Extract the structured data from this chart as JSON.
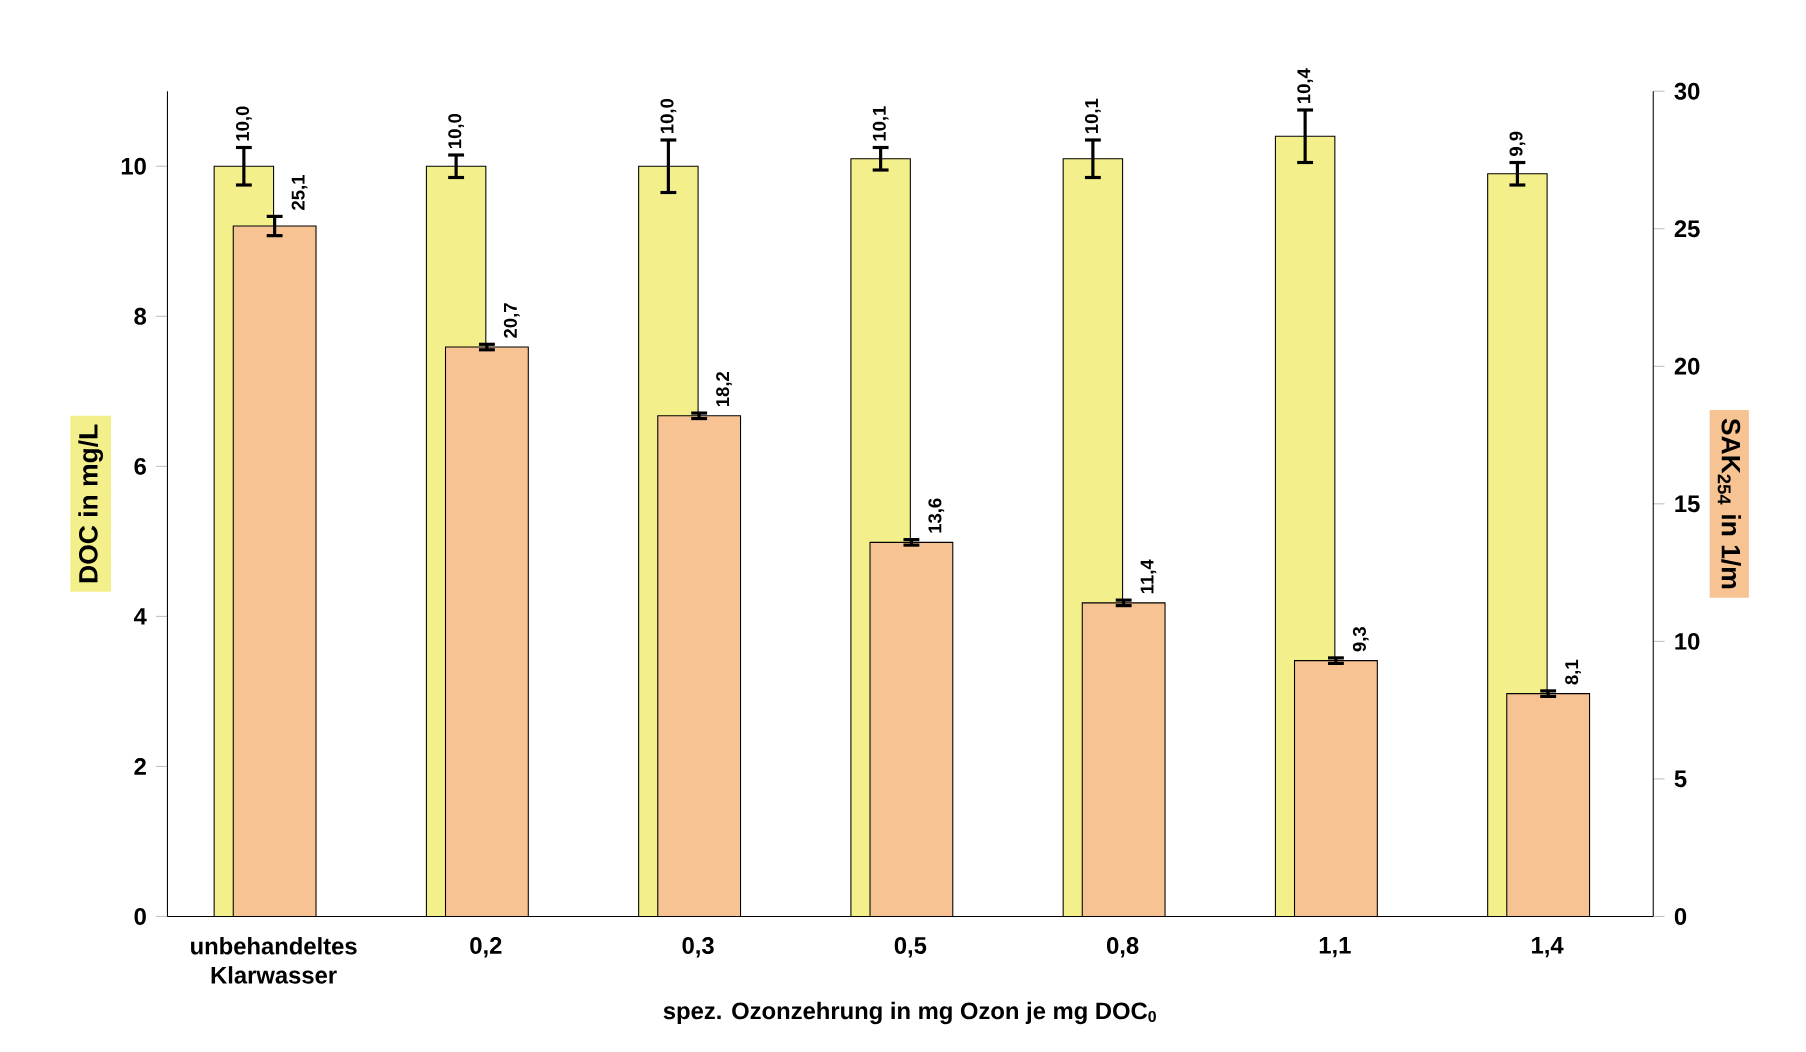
{
  "chart_data": {
    "type": "bar",
    "categories": [
      "unbehandeltes Klarwasser",
      "0,2",
      "0,3",
      "0,5",
      "0,8",
      "1,1",
      "1,4"
    ],
    "xlabel": "spez. Ozonzehrung in mg Ozon je mg DOC$_{0}$",
    "ylabel": "DOC in mg/L",
    "y2label": "SAK$_{254}$ in 1/m",
    "ylim": [
      0,
      11
    ],
    "yticks": [
      0,
      2,
      4,
      6,
      8,
      10
    ],
    "y2lim": [
      0,
      30
    ],
    "y2ticks": [
      0,
      5,
      10,
      15,
      20,
      25,
      30
    ],
    "series": [
      {
        "color": "#f3f08c",
        "values": [
          10.0,
          10.0,
          10.0,
          10.1,
          10.1,
          10.4,
          9.9
        ],
        "errors": [
          0.25,
          0.15,
          0.35,
          0.15,
          0.25,
          0.35,
          0.15
        ],
        "value_labels": [
          "10,0",
          "10,0",
          "10,0",
          "10,1",
          "10,1",
          "10,4",
          "9,9"
        ]
      },
      {
        "color": "#f8c393",
        "axis": "y2",
        "values": [
          25.1,
          20.7,
          18.2,
          13.6,
          11.4,
          9.3,
          8.1
        ],
        "errors": [
          0.35,
          0.1,
          0.1,
          0.1,
          0.1,
          0.1,
          0.1
        ],
        "value_labels": [
          "25,1",
          "20,7",
          "18,2",
          "13,6",
          "11,4",
          "9,3",
          "8,1"
        ]
      }
    ]
  }
}
